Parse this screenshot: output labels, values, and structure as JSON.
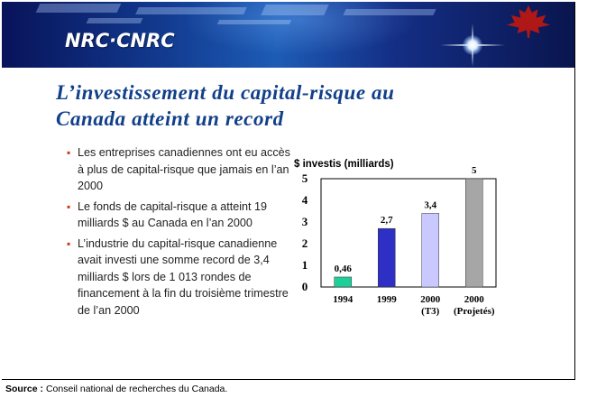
{
  "header": {
    "logo_text": "NRC·CNRC",
    "brand_colors": {
      "banner_dark": "#08135a",
      "banner_mid": "#1d5cb6",
      "maple_red": "#c2170f"
    }
  },
  "slide": {
    "title_line1": "L’investissement du capital-risque au",
    "title_line2": "Canada atteint un record",
    "title_color": "#123f8a",
    "bullet_color": "#c83c10",
    "bullets": [
      "Les entreprises canadiennes ont eu accès à plus de capital-risque que jamais en l’an 2000",
      "Le fonds de capital-risque a atteint 19 milliards $ au Canada en l’an 2000",
      "L’industrie du capital-risque canadienne avait investi une somme record de 3,4 milliards $ lors de 1 013 rondes de financement à la fin du troisième trimestre de l’an 2000"
    ]
  },
  "chart_data": {
    "type": "bar",
    "ylabel": "$ investis (milliards)",
    "ylim": [
      0,
      5
    ],
    "yticks": [
      "0",
      "1",
      "2",
      "3",
      "4",
      "5"
    ],
    "grid": false,
    "categories": [
      {
        "line1": "1994",
        "line2": ""
      },
      {
        "line1": "1999",
        "line2": ""
      },
      {
        "line1": "2000",
        "line2": "(T3)"
      },
      {
        "line1": "2000",
        "line2": "(Projetés)"
      }
    ],
    "values": [
      0.46,
      2.7,
      3.4,
      5
    ],
    "value_labels": [
      "0,46",
      "2,7",
      "3,4",
      "5"
    ],
    "colors": [
      "#1fcf9a",
      "#2e2fc4",
      "#c9c9ff",
      "#a6a6a6"
    ]
  },
  "footer": {
    "source_label": "Source :",
    "source_text": "Conseil national de recherches du Canada."
  }
}
